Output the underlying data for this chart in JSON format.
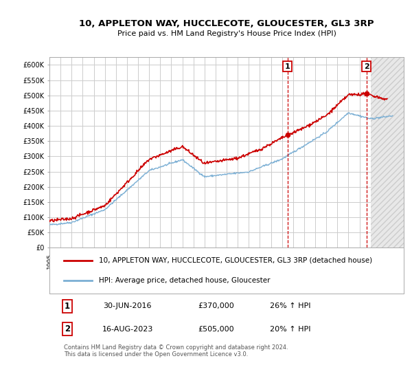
{
  "title": "10, APPLETON WAY, HUCCLECOTE, GLOUCESTER, GL3 3RP",
  "subtitle": "Price paid vs. HM Land Registry's House Price Index (HPI)",
  "ylim": [
    0,
    625000
  ],
  "yticks": [
    0,
    50000,
    100000,
    150000,
    200000,
    250000,
    300000,
    350000,
    400000,
    450000,
    500000,
    550000,
    600000
  ],
  "ytick_labels": [
    "£0",
    "£50K",
    "£100K",
    "£150K",
    "£200K",
    "£250K",
    "£300K",
    "£350K",
    "£400K",
    "£450K",
    "£500K",
    "£550K",
    "£600K"
  ],
  "hpi_color": "#7bafd4",
  "price_color": "#cc0000",
  "sale1_date": 2016.5,
  "sale1_price": 370000,
  "sale2_date": 2023.625,
  "sale2_price": 505000,
  "legend_price_label": "10, APPLETON WAY, HUCCLECOTE, GLOUCESTER, GL3 3RP (detached house)",
  "legend_hpi_label": "HPI: Average price, detached house, Gloucester",
  "annotation1_date": "30-JUN-2016",
  "annotation1_price": "£370,000",
  "annotation1_hpi": "26% ↑ HPI",
  "annotation2_date": "16-AUG-2023",
  "annotation2_price": "£505,000",
  "annotation2_hpi": "20% ↑ HPI",
  "copyright_text": "Contains HM Land Registry data © Crown copyright and database right 2024.\nThis data is licensed under the Open Government Licence v3.0.",
  "background_color": "#ffffff",
  "grid_color": "#cccccc"
}
